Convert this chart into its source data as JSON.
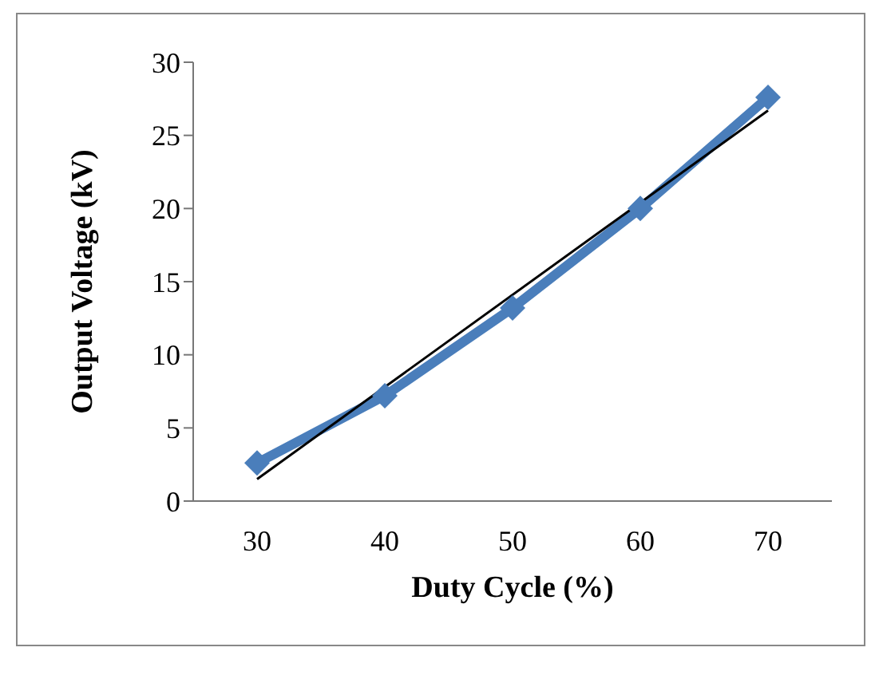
{
  "chart_data": {
    "type": "line",
    "xlabel": "Duty Cycle (%)",
    "ylabel": "Output Voltage (kV)",
    "x": [
      30,
      40,
      50,
      60,
      70
    ],
    "series": [
      {
        "color": "#4a7ebb",
        "values": [
          2.6,
          7.2,
          13.2,
          20.0,
          27.6
        ],
        "marker": "diamond"
      },
      {
        "type": "line",
        "color": "#000000",
        "x": [
          30,
          70
        ],
        "values": [
          1.5,
          26.7
        ],
        "marker": "none"
      }
    ],
    "xlim": [
      25,
      75
    ],
    "xticks": [
      30,
      40,
      50,
      60,
      70
    ],
    "ylim": [
      0,
      30
    ],
    "yticks": [
      0,
      5,
      10,
      15,
      20,
      25,
      30
    ],
    "grid": false,
    "legend": false
  }
}
